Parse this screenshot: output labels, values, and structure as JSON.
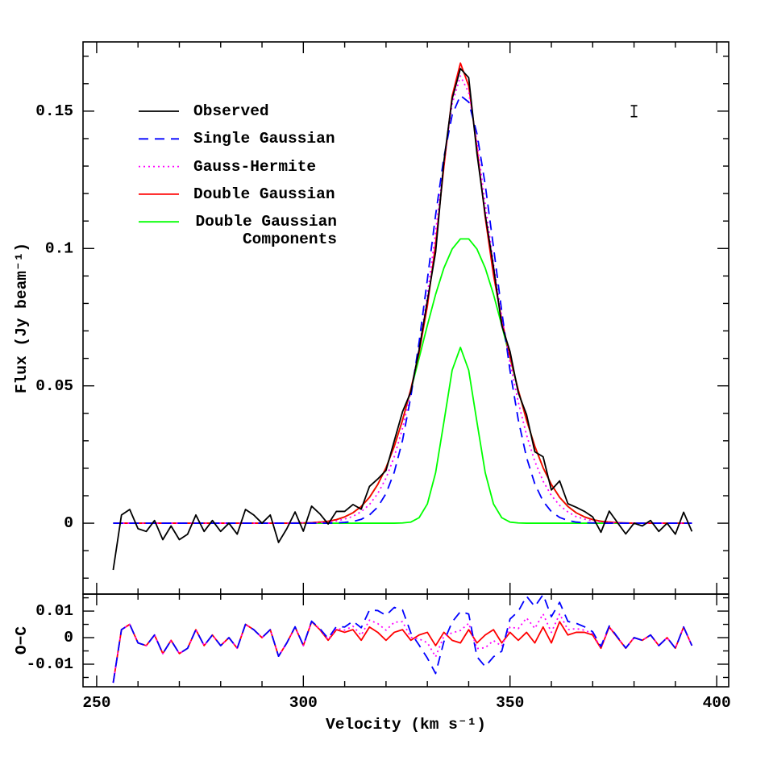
{
  "chart_data": [
    {
      "type": "line",
      "ylabel": "Flux (Jy beam⁻¹)",
      "xlim": [
        246.7,
        402.9
      ],
      "ylim": [
        -0.0258,
        0.1752
      ],
      "xticks": [
        250,
        300,
        350,
        400
      ],
      "yticks": [
        0,
        0.05,
        0.1,
        0.15
      ],
      "xticks_minor": [
        260,
        270,
        280,
        290,
        310,
        320,
        330,
        340,
        360,
        370,
        380,
        390
      ],
      "yticks_minor": [
        -0.02,
        -0.01,
        0.01,
        0.02,
        0.03,
        0.04,
        0.06,
        0.07,
        0.08,
        0.09,
        0.11,
        0.12,
        0.13,
        0.14,
        0.16,
        0.17
      ],
      "legend": "upper left",
      "error_bar": {
        "x": 380,
        "y": 0.15,
        "error": 0.002
      },
      "x": [
        254,
        256,
        258,
        260,
        262,
        264,
        266,
        268,
        270,
        272,
        274,
        276,
        278,
        280,
        282,
        284,
        286,
        288,
        290,
        292,
        294,
        296,
        298,
        300,
        302,
        304,
        306,
        308,
        310,
        312,
        314,
        316,
        318,
        320,
        322,
        324,
        326,
        328,
        330,
        332,
        334,
        336,
        338,
        340,
        342,
        344,
        346,
        348,
        350,
        352,
        354,
        356,
        358,
        360,
        362,
        364,
        366,
        368,
        370,
        372,
        374,
        376,
        378,
        380,
        382,
        384,
        386,
        388,
        390,
        392,
        394
      ],
      "series": [
        {
          "name": "Observed",
          "color": "#000000",
          "dash": "solid",
          "values": [
            -0.017,
            0.003,
            0.005,
            -0.002,
            -0.003,
            0.001,
            -0.006,
            -0.001,
            -0.006,
            -0.004,
            0.003,
            -0.003,
            0.001,
            -0.003,
            0,
            -0.004,
            0.005,
            0.003,
            0,
            0.003,
            -0.007,
            -0.002,
            0.0041,
            -0.0029,
            0.0062,
            0.0034,
            -0.0003,
            0.0043,
            0.0043,
            0.0068,
            0.0051,
            0.0134,
            0.0161,
            0.0192,
            0.03,
            0.0406,
            0.0478,
            0.0631,
            0.081,
            0.0987,
            0.1317,
            0.1545,
            0.1655,
            0.1622,
            0.1346,
            0.1123,
            0.0933,
            0.072,
            0.0625,
            0.0475,
            0.0395,
            0.026,
            0.0242,
            0.0121,
            0.0154,
            0.0071,
            0.0058,
            0.0043,
            0.0023,
            -0.0033,
            0.0044,
            0.0002,
            -0.0039,
            0,
            -0.001,
            0.001,
            -0.003,
            0,
            -0.004,
            0.004,
            -0.003
          ]
        },
        {
          "name": "Single Gaussian",
          "color": "#0000ff",
          "dash": "dashed",
          "values": [
            0,
            0,
            0,
            0,
            0,
            0,
            0,
            0,
            0,
            0,
            0,
            0,
            0,
            0,
            0,
            0,
            0,
            0,
            0,
            0,
            0,
            0,
            0,
            0,
            0,
            0,
            0,
            0.0001,
            0.0003,
            0.0006,
            0.0014,
            0.003,
            0.0059,
            0.0108,
            0.0186,
            0.0302,
            0.046,
            0.0659,
            0.0887,
            0.1122,
            0.1332,
            0.1486,
            0.1557,
            0.1533,
            0.1418,
            0.1232,
            0.1005,
            0.0771,
            0.0555,
            0.0376,
            0.0239,
            0.0143,
            0.008,
            0.0042,
            0.0021,
            0.001,
            0.0004,
            0.0002,
            0.0001,
            0,
            0,
            0,
            0,
            0,
            0,
            0,
            0,
            0,
            0,
            0,
            0
          ]
        },
        {
          "name": "Gauss-Hermite",
          "color": "#ff00ff",
          "dash": "dotted",
          "values": [
            0,
            0,
            0,
            0,
            0,
            0,
            0,
            0,
            0,
            0,
            0,
            0,
            0,
            0,
            0,
            0,
            0,
            0,
            0,
            0,
            0,
            0,
            0.0001,
            0.0001,
            0.0001,
            0.0002,
            0.0004,
            0.0008,
            0.0015,
            0.0025,
            0.0042,
            0.0068,
            0.0108,
            0.0164,
            0.0242,
            0.0346,
            0.0477,
            0.0636,
            0.0829,
            0.1059,
            0.1311,
            0.1527,
            0.1628,
            0.1568,
            0.1387,
            0.1161,
            0.0944,
            0.0752,
            0.0585,
            0.0441,
            0.0321,
            0.0225,
            0.0153,
            0.0101,
            0.0065,
            0.0041,
            0.0024,
            0.0015,
            0.0008,
            0.0004,
            0.0002,
            0.0001,
            0.0001,
            0,
            0,
            0,
            0,
            0,
            0,
            0,
            0
          ]
        },
        {
          "name": "Double Gaussian",
          "color": "#ff0000",
          "dash": "solid",
          "values": [
            0,
            0,
            0,
            0,
            0,
            0,
            0,
            0,
            0,
            0,
            0,
            0,
            0,
            0,
            0,
            0,
            0,
            0,
            0,
            0,
            0,
            0,
            0.0001,
            0.0001,
            0.0002,
            0.0004,
            0.0007,
            0.0013,
            0.0023,
            0.0038,
            0.0061,
            0.0094,
            0.0141,
            0.0202,
            0.028,
            0.0376,
            0.0488,
            0.0621,
            0.079,
            0.1017,
            0.1297,
            0.1555,
            0.1675,
            0.1592,
            0.1366,
            0.1113,
            0.0903,
            0.074,
            0.0605,
            0.0485,
            0.0375,
            0.028,
            0.0202,
            0.0141,
            0.0094,
            0.0061,
            0.0038,
            0.0023,
            0.0013,
            0.0007,
            0.0004,
            0.0002,
            0.0001,
            0,
            0,
            0,
            0,
            0,
            0,
            0,
            0
          ]
        },
        {
          "name": "Double Gaussian Components",
          "color": "#00ff00",
          "dash": "solid",
          "values": [
            0,
            0,
            0,
            0,
            0,
            0,
            0,
            0,
            0,
            0,
            0,
            0,
            0,
            0,
            0,
            0,
            0,
            0,
            0,
            0,
            0,
            0,
            0.0001,
            0.0001,
            0.0002,
            0.0004,
            0.0007,
            0.0013,
            0.0023,
            0.0038,
            0.0061,
            0.0094,
            0.0141,
            0.0202,
            0.028,
            0.0375,
            0.0484,
            0.0601,
            0.072,
            0.0833,
            0.0929,
            0.0998,
            0.1035,
            0.1035,
            0.0998,
            0.0929,
            0.0833,
            0.072,
            0.0601,
            0.0484,
            0.0375,
            0.028,
            0.0202,
            0.0141,
            0.0094,
            0.0061,
            0.0038,
            0.0023,
            0.0013,
            0.0007,
            0.0004,
            0.0002,
            0.0001,
            0,
            0,
            0,
            0,
            0,
            0,
            0,
            0
          ]
        },
        {
          "color": "#00ff00",
          "dash": "solid",
          "values": [
            0,
            0,
            0,
            0,
            0,
            0,
            0,
            0,
            0,
            0,
            0,
            0,
            0,
            0,
            0,
            0,
            0,
            0,
            0,
            0,
            0,
            0,
            0,
            0,
            0,
            0,
            0,
            0,
            0,
            0,
            0,
            0,
            0,
            0,
            0,
            0.0001,
            0.0004,
            0.002,
            0.007,
            0.0184,
            0.0368,
            0.0557,
            0.064,
            0.0557,
            0.0368,
            0.0184,
            0.007,
            0.002,
            0.0004,
            0.0001,
            0,
            0,
            0,
            0,
            0,
            0,
            0,
            0,
            0,
            0,
            0,
            0,
            0,
            0,
            0,
            0,
            0,
            0,
            0,
            0,
            0
          ]
        }
      ]
    },
    {
      "type": "line",
      "ylabel": "O−C",
      "xlabel": "Velocity (km s⁻¹)",
      "xlim": [
        246.7,
        402.9
      ],
      "ylim": [
        -0.0185,
        0.0164
      ],
      "xticks": [
        250,
        300,
        350,
        400
      ],
      "yticks": [
        -0.01,
        0,
        0.01
      ],
      "xticks_minor": [
        260,
        270,
        280,
        290,
        310,
        320,
        330,
        340,
        360,
        370,
        380,
        390
      ],
      "yticks_minor": [
        -0.015,
        -0.005,
        0.005,
        0.015
      ],
      "x": [
        254,
        256,
        258,
        260,
        262,
        264,
        266,
        268,
        270,
        272,
        274,
        276,
        278,
        280,
        282,
        284,
        286,
        288,
        290,
        292,
        294,
        296,
        298,
        300,
        302,
        304,
        306,
        308,
        310,
        312,
        314,
        316,
        318,
        320,
        322,
        324,
        326,
        328,
        330,
        332,
        334,
        336,
        338,
        340,
        342,
        344,
        346,
        348,
        350,
        352,
        354,
        356,
        358,
        360,
        362,
        364,
        366,
        368,
        370,
        372,
        374,
        376,
        378,
        380,
        382,
        384,
        386,
        388,
        390,
        392,
        394
      ],
      "series": [
        {
          "color": "#0000ff",
          "dash": "dashed",
          "values": [
            -0.017,
            0.003,
            0.005,
            -0.002,
            -0.003,
            0.001,
            -0.006,
            -0.001,
            -0.006,
            -0.004,
            0.003,
            -0.003,
            0.001,
            -0.003,
            0,
            -0.004,
            0.005,
            0.003,
            0,
            0.003,
            -0.007,
            -0.002,
            0.0041,
            -0.0029,
            0.0062,
            0.0034,
            -0.0003,
            0.0042,
            0.004,
            0.0062,
            0.0037,
            0.0104,
            0.0102,
            0.0084,
            0.0114,
            0.0104,
            0.0018,
            -0.0028,
            -0.0077,
            -0.0135,
            -0.0015,
            0.0059,
            0.0098,
            0.0089,
            -0.0072,
            -0.0109,
            -0.0072,
            -0.0051,
            0.007,
            0.0099,
            0.0156,
            0.0117,
            0.0162,
            0.0079,
            0.0133,
            0.0061,
            0.0054,
            0.0041,
            0.0022,
            -0.0033,
            0.0044,
            0.0002,
            -0.0039,
            0,
            -0.001,
            0.001,
            -0.003,
            0,
            -0.004,
            0.004,
            -0.003
          ]
        },
        {
          "color": "#ff00ff",
          "dash": "dotted",
          "values": [
            -0.017,
            0.003,
            0.005,
            -0.002,
            -0.003,
            0.001,
            -0.006,
            -0.001,
            -0.006,
            -0.004,
            0.003,
            -0.003,
            0.001,
            -0.003,
            0,
            -0.004,
            0.005,
            0.003,
            0,
            0.003,
            -0.007,
            -0.002,
            0.004,
            -0.003,
            0.0061,
            0.0032,
            -0.0007,
            0.0035,
            0.0028,
            0.0043,
            0.0009,
            0.0066,
            0.0053,
            0.0028,
            0.0058,
            0.006,
            0.0001,
            -0.0005,
            -0.0019,
            -0.0072,
            0.0006,
            0.0018,
            0.0027,
            0.0054,
            -0.0041,
            -0.0038,
            -0.0011,
            -0.0032,
            0.004,
            0.0034,
            0.0074,
            0.0035,
            0.0089,
            0.002,
            0.0089,
            0.003,
            0.0034,
            0.0028,
            0.0015,
            -0.0037,
            0.0042,
            0.0001,
            -0.004,
            0,
            -0.001,
            0.001,
            -0.003,
            0,
            -0.004,
            0.004,
            -0.003
          ]
        },
        {
          "color": "#ff0000",
          "dash": "solid",
          "values": [
            -0.017,
            0.003,
            0.005,
            -0.002,
            -0.003,
            0.001,
            -0.006,
            -0.001,
            -0.006,
            -0.004,
            0.003,
            -0.003,
            0.001,
            -0.003,
            0,
            -0.004,
            0.005,
            0.003,
            0,
            0.003,
            -0.007,
            -0.002,
            0.004,
            -0.003,
            0.006,
            0.003,
            -0.001,
            0.003,
            0.002,
            0.003,
            -0.001,
            0.004,
            0.002,
            -0.001,
            0.002,
            0.003,
            -0.001,
            0.001,
            0.002,
            -0.003,
            0.002,
            -0.001,
            -0.002,
            0.003,
            -0.002,
            0.001,
            0.003,
            -0.002,
            0.002,
            -0.001,
            0.002,
            -0.002,
            0.004,
            -0.002,
            0.006,
            0.001,
            0.002,
            0.002,
            0.001,
            -0.004,
            0.004,
            0,
            -0.004,
            0,
            -0.001,
            0.001,
            -0.003,
            0,
            -0.004,
            0.004,
            -0.003
          ]
        }
      ]
    }
  ]
}
